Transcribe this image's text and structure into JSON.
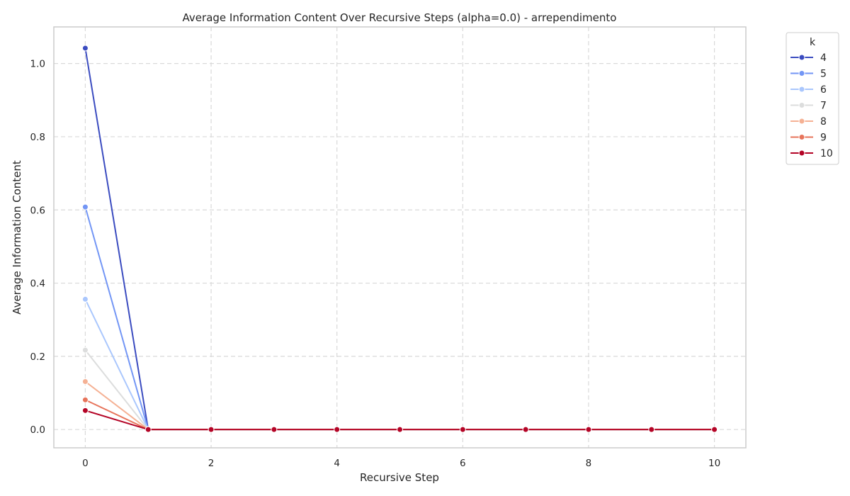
{
  "chart_data": {
    "type": "line",
    "title": "Average Information Content Over Recursive Steps (alpha=0.0) - arrependimento",
    "xlabel": "Recursive Step",
    "ylabel": "Average Information Content",
    "xlim": [
      -0.5,
      10.5
    ],
    "ylim": [
      -0.05,
      1.1
    ],
    "x_ticks": [
      0,
      2,
      4,
      6,
      8,
      10
    ],
    "y_ticks": [
      0.0,
      0.2,
      0.4,
      0.6,
      0.8,
      1.0
    ],
    "grid": true,
    "legend": {
      "title": "k",
      "placement": "outside-top-right"
    },
    "x": [
      0,
      1,
      2,
      3,
      4,
      5,
      6,
      7,
      8,
      9,
      10
    ],
    "series": [
      {
        "name": "4",
        "color": "#3b4cc0",
        "values": [
          1.042,
          0,
          0,
          0,
          0,
          0,
          0,
          0,
          0,
          0,
          0
        ]
      },
      {
        "name": "5",
        "color": "#7396f5",
        "values": [
          0.608,
          0,
          0,
          0,
          0,
          0,
          0,
          0,
          0,
          0,
          0
        ]
      },
      {
        "name": "6",
        "color": "#aac7fd",
        "values": [
          0.356,
          0,
          0,
          0,
          0,
          0,
          0,
          0,
          0,
          0,
          0
        ]
      },
      {
        "name": "7",
        "color": "#dcdddd",
        "values": [
          0.217,
          0,
          0,
          0,
          0,
          0,
          0,
          0,
          0,
          0,
          0
        ]
      },
      {
        "name": "8",
        "color": "#f5b194",
        "values": [
          0.131,
          0,
          0,
          0,
          0,
          0,
          0,
          0,
          0,
          0,
          0
        ]
      },
      {
        "name": "9",
        "color": "#e7745b",
        "values": [
          0.081,
          0,
          0,
          0,
          0,
          0,
          0,
          0,
          0,
          0,
          0
        ]
      },
      {
        "name": "10",
        "color": "#b40426",
        "values": [
          0.052,
          0,
          0,
          0,
          0,
          0,
          0,
          0,
          0,
          0,
          0
        ]
      }
    ]
  }
}
